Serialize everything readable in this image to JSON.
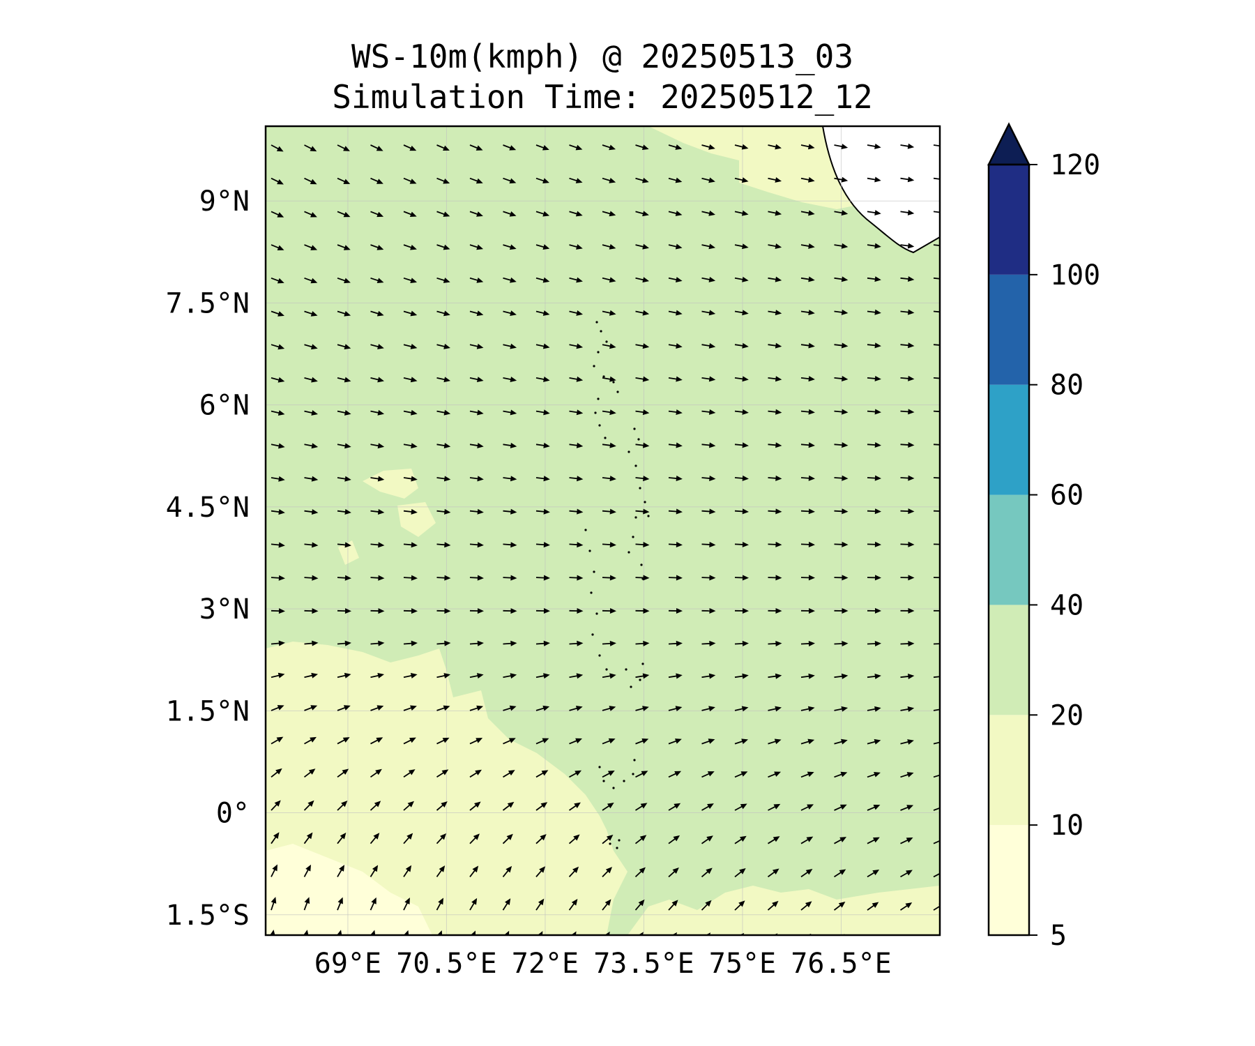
{
  "title": {
    "line1": "WS-10m(kmph) @ 20250513_03",
    "line2": "Simulation Time: 20250512_12"
  },
  "map": {
    "lon_range": [
      67.75,
      78.0
    ],
    "lat_range": [
      -1.8,
      10.1
    ],
    "lon_ticks": [
      {
        "value": 69.0,
        "label": "69°E"
      },
      {
        "value": 70.5,
        "label": "70.5°E"
      },
      {
        "value": 72.0,
        "label": "72°E"
      },
      {
        "value": 73.5,
        "label": "73.5°E"
      },
      {
        "value": 75.0,
        "label": "75°E"
      },
      {
        "value": 76.5,
        "label": "76.5°E"
      }
    ],
    "lat_ticks": [
      {
        "value": 9.0,
        "label": "9°N"
      },
      {
        "value": 7.5,
        "label": "7.5°N"
      },
      {
        "value": 6.0,
        "label": "6°N"
      },
      {
        "value": 4.5,
        "label": "4.5°N"
      },
      {
        "value": 3.0,
        "label": "3°N"
      },
      {
        "value": 1.5,
        "label": "1.5°N"
      },
      {
        "value": 0.0,
        "label": "0°"
      },
      {
        "value": -1.5,
        "label": "1.5°S"
      }
    ],
    "grid": true,
    "field": "wind speed 10 m (kmph) filled contours with wind direction arrows"
  },
  "colorbar": {
    "levels": [
      {
        "value": 5,
        "label": "5",
        "color": "#ffffd9"
      },
      {
        "value": 10,
        "label": "10",
        "color": "#f2f9c3"
      },
      {
        "value": 20,
        "label": "20",
        "color": "#d0ecb6"
      },
      {
        "value": 40,
        "label": "40",
        "color": "#76c8bf"
      },
      {
        "value": 60,
        "label": "60",
        "color": "#2ea1c7"
      },
      {
        "value": 80,
        "label": "80",
        "color": "#2363aa"
      },
      {
        "value": 100,
        "label": "100",
        "color": "#1f2d84"
      },
      {
        "value": 120,
        "label": "120",
        "color": "#0d1e54"
      }
    ],
    "extend": "max"
  }
}
